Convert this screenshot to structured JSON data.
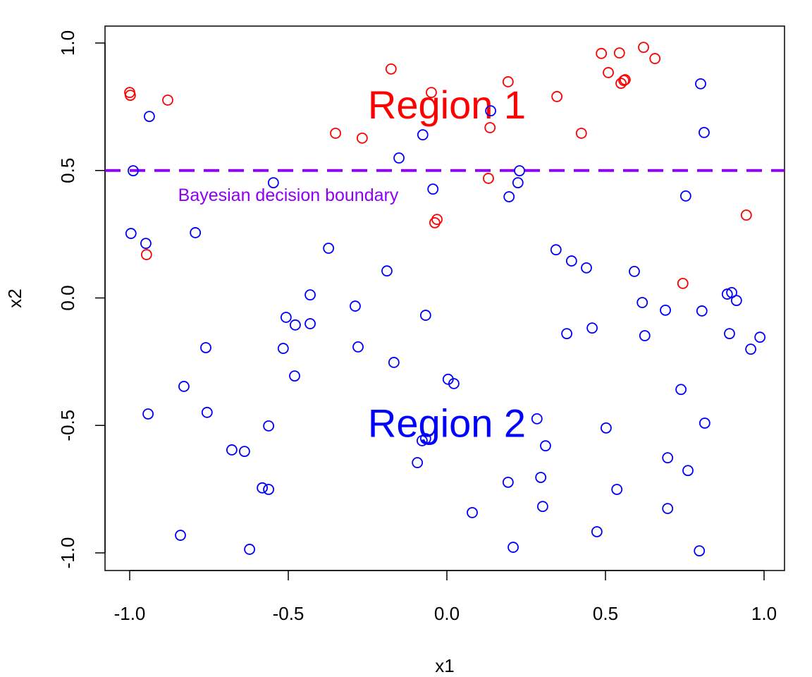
{
  "chart_data": {
    "type": "scatter",
    "title": "",
    "xlabel": "x1",
    "ylabel": "x2",
    "xlim": [
      -1.08,
      1.06
    ],
    "ylim": [
      -1.07,
      1.07
    ],
    "xticks": [
      "-1.0",
      "-0.5",
      "0.0",
      "0.5",
      "1.0"
    ],
    "yticks": [
      "-1.0",
      "-0.5",
      "0.0",
      "0.5",
      "1.0"
    ],
    "grid": false,
    "marker": "open-circle",
    "colors": {
      "red": "#FF0000",
      "blue": "#0000FF",
      "boundary": "#9000F0"
    },
    "boundary": {
      "y": 0.5,
      "style": "dashed",
      "label": "Bayesian decision boundary",
      "label_x": -0.5,
      "label_y": 0.405
    },
    "annotations": [
      {
        "text": "Region 1",
        "x": 0.0,
        "y": 0.76,
        "color": "#FF0000"
      },
      {
        "text": "Region 2",
        "x": 0.0,
        "y": -0.49,
        "color": "#0000FF"
      }
    ],
    "series": [
      {
        "color": "#FF0000",
        "x": [
          -1.0,
          -0.998,
          -0.88,
          -0.176,
          -0.049,
          -0.351,
          -0.267,
          0.193,
          0.136,
          0.131,
          0.347,
          0.424,
          0.487,
          0.544,
          0.62,
          0.656,
          0.509,
          0.549,
          0.558,
          0.562,
          -0.038,
          -0.031,
          -0.947,
          0.944,
          0.744
        ],
        "y": [
          0.806,
          0.795,
          0.776,
          0.898,
          0.806,
          0.646,
          0.627,
          0.848,
          0.668,
          0.469,
          0.79,
          0.646,
          0.959,
          0.961,
          0.983,
          0.939,
          0.884,
          0.842,
          0.853,
          0.856,
          0.295,
          0.308,
          0.17,
          0.325,
          0.057
        ]
      },
      {
        "color": "#0000FF",
        "x": [
          -0.938,
          -0.989,
          -0.996,
          -0.949,
          -0.793,
          -0.076,
          -0.151,
          0.138,
          -0.044,
          0.229,
          0.224,
          0.196,
          0.8,
          0.811,
          0.753,
          -0.547,
          -0.373,
          -0.189,
          -0.431,
          -0.289,
          -0.067,
          -0.507,
          -0.478,
          -0.431,
          -0.76,
          -0.516,
          -0.28,
          -0.167,
          -0.48,
          -0.829,
          0.004,
          0.022,
          -0.942,
          -0.756,
          -0.562,
          -0.678,
          -0.638,
          -0.078,
          -0.067,
          -0.093,
          -0.582,
          -0.562,
          -0.84,
          -0.622,
          0.08,
          0.209,
          0.193,
          0.284,
          0.311,
          0.296,
          0.302,
          0.344,
          0.393,
          0.44,
          0.591,
          0.378,
          0.458,
          0.502,
          0.536,
          0.473,
          0.616,
          0.689,
          0.624,
          0.738,
          0.884,
          0.898,
          0.913,
          0.804,
          0.891,
          0.987,
          0.958,
          0.813,
          0.696,
          0.76,
          0.696,
          0.796
        ],
        "y": [
          0.712,
          0.499,
          0.253,
          0.214,
          0.256,
          0.64,
          0.549,
          0.734,
          0.427,
          0.499,
          0.452,
          0.397,
          0.84,
          0.649,
          0.4,
          0.452,
          0.195,
          0.106,
          0.012,
          -0.032,
          -0.068,
          -0.076,
          -0.106,
          -0.101,
          -0.195,
          -0.198,
          -0.192,
          -0.253,
          -0.306,
          -0.347,
          -0.319,
          -0.336,
          -0.455,
          -0.449,
          -0.502,
          -0.596,
          -0.602,
          -0.56,
          -0.552,
          -0.646,
          -0.745,
          -0.751,
          -0.931,
          -0.986,
          -0.842,
          -0.978,
          -0.723,
          -0.474,
          -0.58,
          -0.704,
          -0.818,
          0.189,
          0.145,
          0.118,
          0.104,
          -0.14,
          -0.118,
          -0.51,
          -0.751,
          -0.917,
          -0.018,
          -0.048,
          -0.148,
          -0.359,
          0.015,
          0.021,
          -0.01,
          -0.051,
          -0.14,
          -0.154,
          -0.201,
          -0.491,
          -0.627,
          -0.677,
          -0.826,
          -0.992
        ]
      }
    ]
  }
}
